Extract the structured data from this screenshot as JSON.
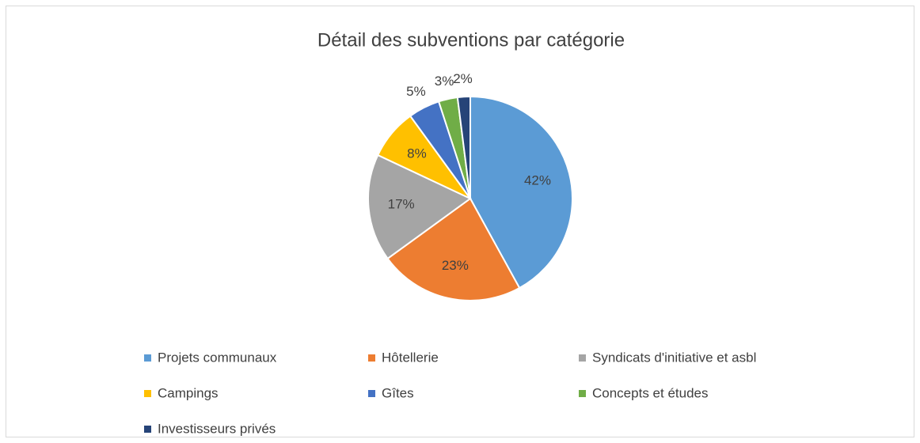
{
  "chart_data": {
    "type": "pie",
    "title": "Détail des subventions par catégorie",
    "categories": [
      "Projets communaux",
      "Hôtellerie",
      "Syndicats d'initiative et asbl",
      "Campings",
      "Gîtes",
      "Concepts et études",
      "Investisseurs privés"
    ],
    "values": [
      42,
      23,
      17,
      8,
      5,
      3,
      2
    ],
    "value_labels": [
      "42%",
      "23%",
      "17%",
      "8%",
      "5%",
      "3%",
      "2%"
    ],
    "colors": [
      "#5b9bd5",
      "#ed7d31",
      "#a5a5a5",
      "#ffc000",
      "#4472c4",
      "#70ad47",
      "#264478"
    ],
    "legend": "bottom"
  }
}
